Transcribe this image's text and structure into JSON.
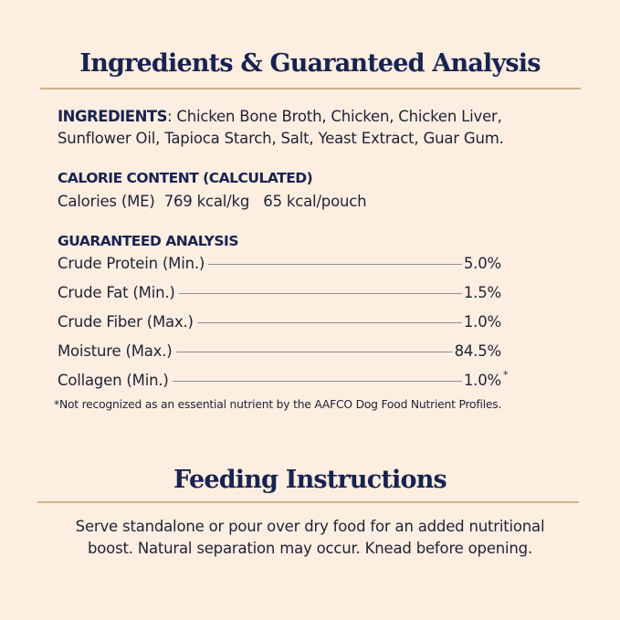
{
  "ingredients_section": {
    "title": "Ingredients & Guaranteed Analysis",
    "ingredients_label": "INGREDIENTS",
    "ingredients_line1": ": Chicken Bone Broth, Chicken, Chicken Liver,",
    "ingredients_line2": "Sunflower Oil, Tapioca Starch, Salt, Yeast Extract, Guar Gum.",
    "calorie_heading": "CALORIE CONTENT (CALCULATED)",
    "calorie_text": "Calories (ME)  769 kcal/kg   65 kcal/pouch",
    "analysis_heading": "GUARANTEED ANALYSIS",
    "analysis_rows": [
      {
        "label": "Crude Protein (Min.)",
        "value": "5.0%"
      },
      {
        "label": "Crude Fat (Min.)",
        "value": "1.5%"
      },
      {
        "label": "Crude Fiber (Max.)",
        "value": "1.0%"
      },
      {
        "label": "Moisture (Max.)",
        "value": "84.5%"
      },
      {
        "label": "Collagen (Min.)",
        "value": "1.0%",
        "note": "*"
      }
    ],
    "footnote": "*Not recognized as an essential nutrient by the AAFCO Dog Food Nutrient Profiles."
  },
  "feeding_section": {
    "title": "Feeding Instructions",
    "line1": "Serve standalone or pour over dry food for an added nutritional",
    "line2": "boost. Natural separation may occur. Knead before opening."
  },
  "colors": {
    "background": "#fdeee2",
    "heading": "#18234f",
    "rule": "#d2b489",
    "text": "#1f2233"
  }
}
